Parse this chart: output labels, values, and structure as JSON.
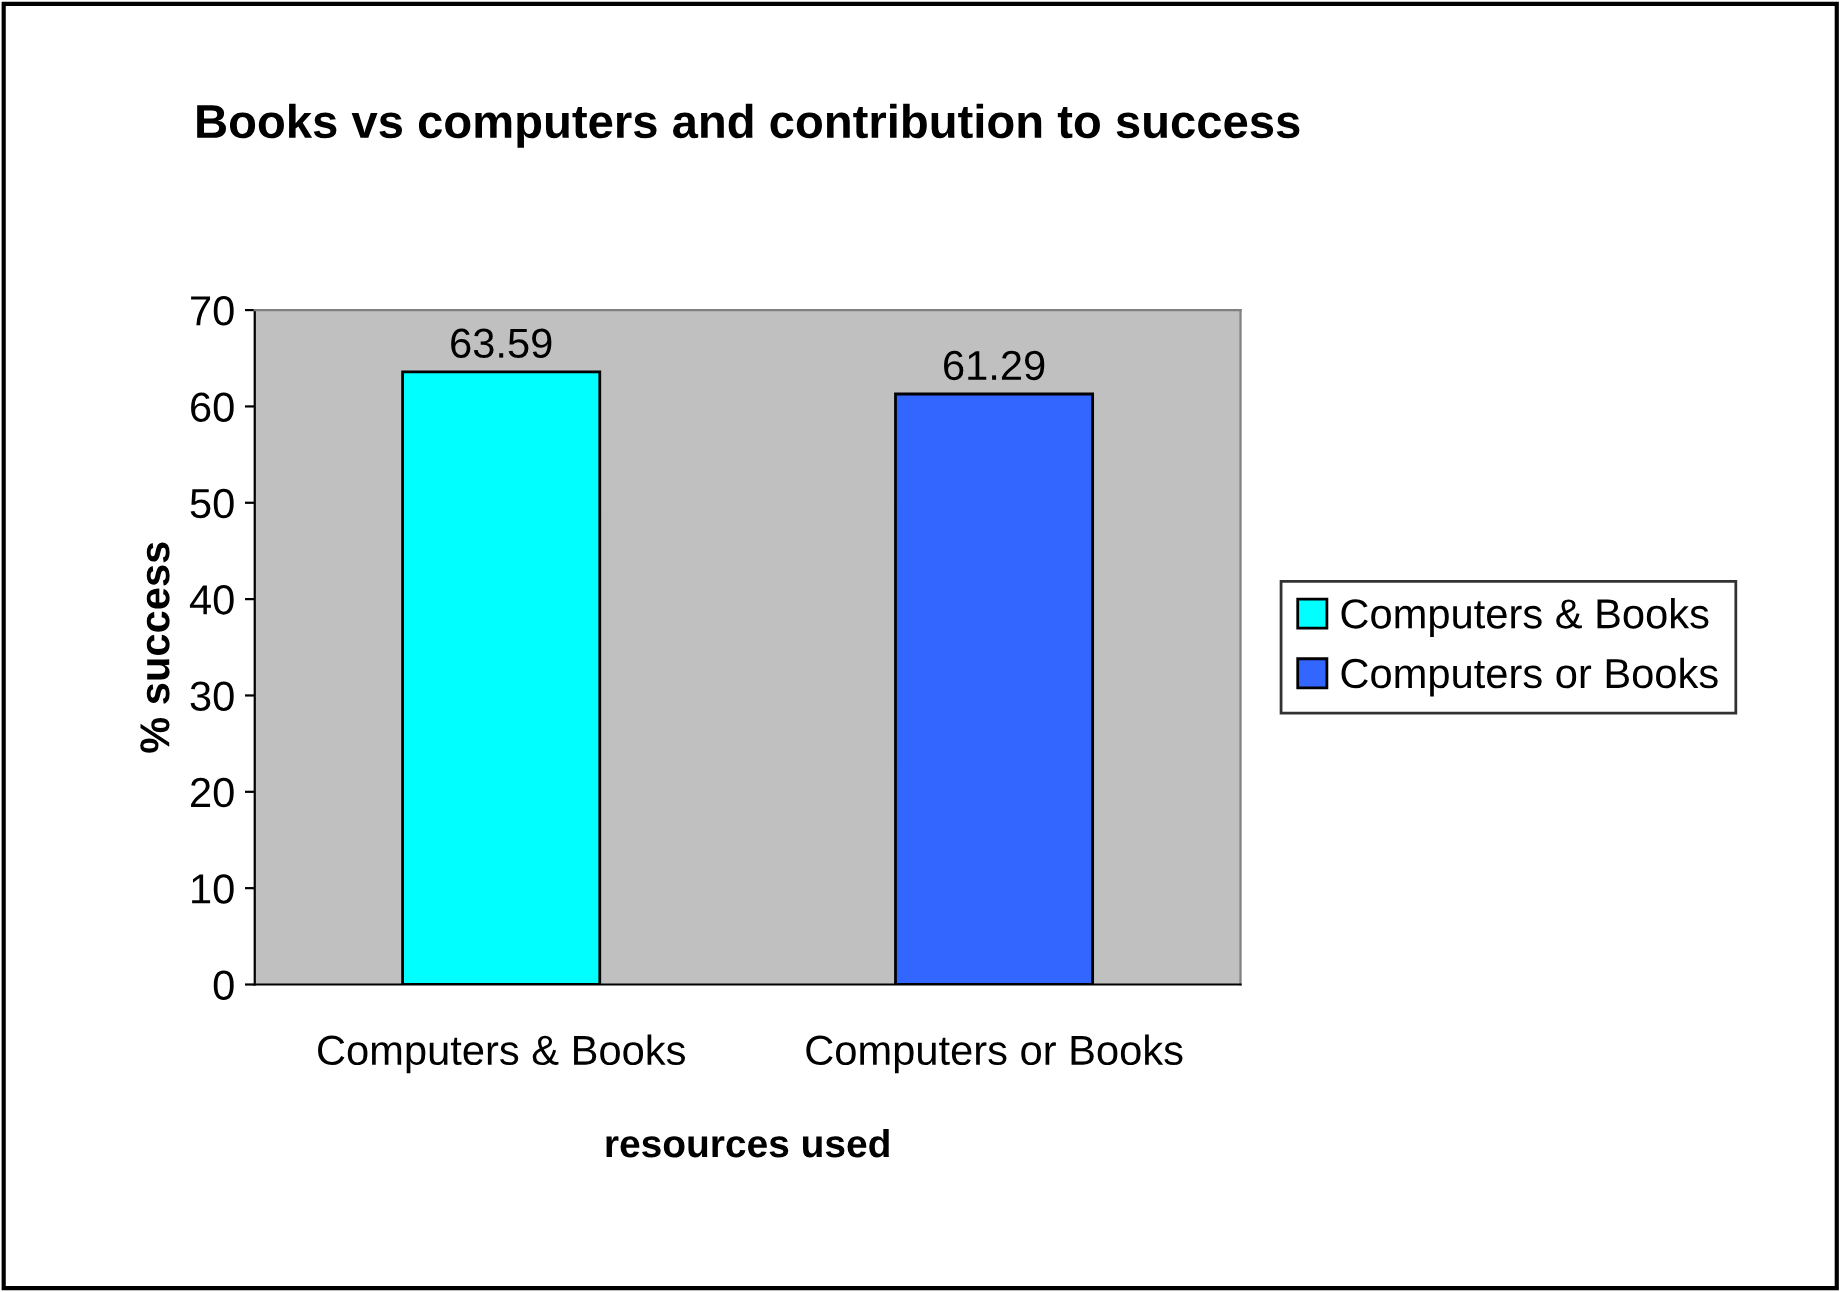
{
  "chart_data": {
    "type": "bar",
    "title": "Books vs computers and contribution to success",
    "xlabel": "resources used",
    "ylabel": "% success",
    "categories": [
      "Computers & Books",
      "Computers or Books"
    ],
    "series": [
      {
        "name": "Computers & Books",
        "color": "#00ffff",
        "values": [
          63.59,
          null
        ]
      },
      {
        "name": "Computers or Books",
        "color": "#3366ff",
        "values": [
          null,
          61.29
        ]
      }
    ],
    "ylim": [
      0,
      70
    ],
    "yticks": [
      0,
      10,
      20,
      30,
      40,
      50,
      60,
      70
    ],
    "data_labels": true,
    "legend": "right",
    "grid": false
  }
}
